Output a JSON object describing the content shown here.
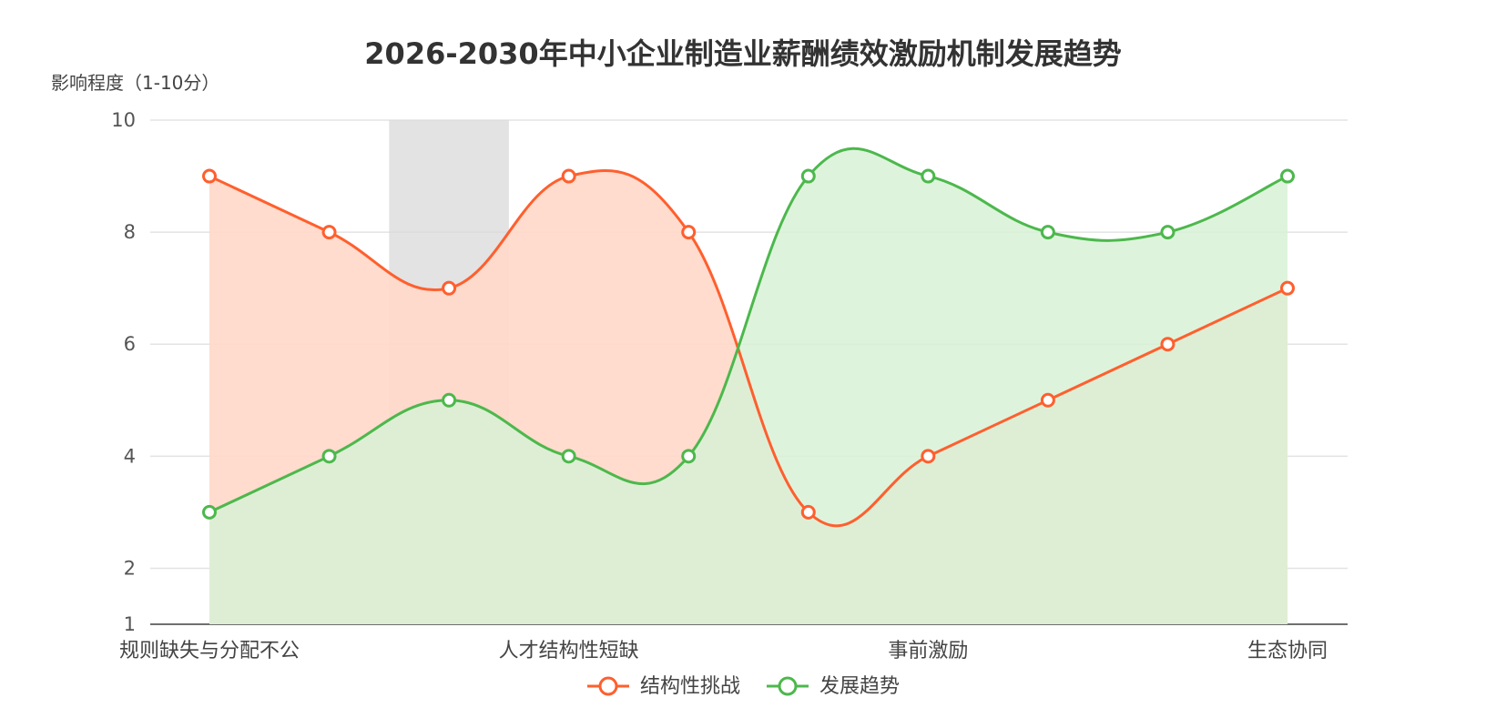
{
  "chart_data": {
    "type": "line",
    "title": "2026-2030年中小企业制造业薪酬绩效激励机制发展趋势",
    "ylabel": "影响程度（1-10分）",
    "ylim": [
      1,
      10
    ],
    "yticks": [
      1,
      2,
      4,
      6,
      8,
      10
    ],
    "categories": [
      "规则缺失与分配不公",
      "",
      "",
      "人才结构性短缺",
      "",
      "",
      "事前激励",
      "",
      "",
      "生态协同"
    ],
    "series": [
      {
        "name": "结构性挑战",
        "color": "#FF5F2E",
        "values": [
          9,
          8,
          7,
          9,
          8,
          3,
          4,
          5,
          6,
          7
        ]
      },
      {
        "name": "发展趋势",
        "color": "#4CB84C",
        "values": [
          3,
          4,
          5,
          4,
          4,
          9,
          9,
          8,
          8,
          9
        ]
      }
    ],
    "highlight_band": {
      "from_index": 2,
      "color": "#d9d9d9"
    },
    "grid": true,
    "legend_position": "bottom"
  }
}
